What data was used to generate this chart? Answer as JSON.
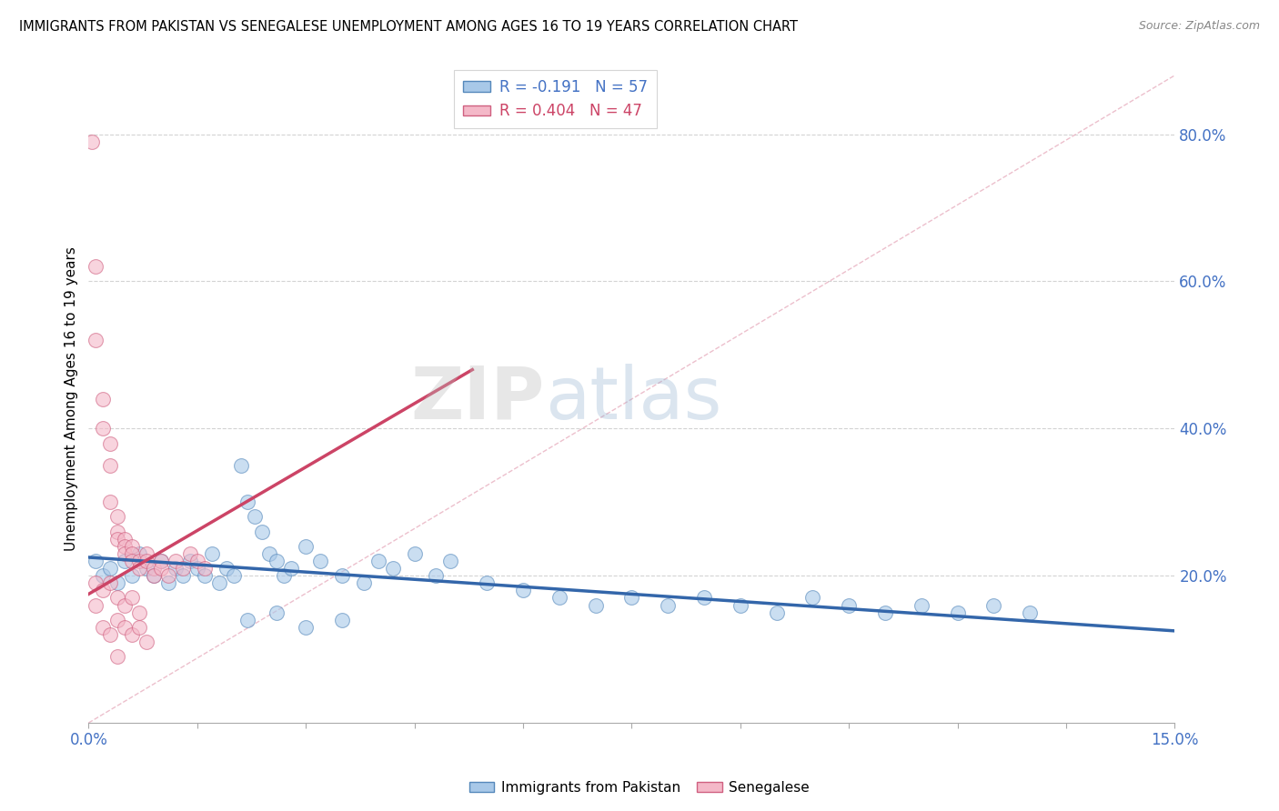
{
  "title": "IMMIGRANTS FROM PAKISTAN VS SENEGALESE UNEMPLOYMENT AMONG AGES 16 TO 19 YEARS CORRELATION CHART",
  "source": "Source: ZipAtlas.com",
  "ylabel": "Unemployment Among Ages 16 to 19 years",
  "xlim": [
    0.0,
    0.15
  ],
  "ylim": [
    0.0,
    0.88
  ],
  "xtick_positions": [
    0.0,
    0.015,
    0.03,
    0.045,
    0.06,
    0.075,
    0.09,
    0.105,
    0.12,
    0.135,
    0.15
  ],
  "xtick_labels": [
    "0.0%",
    "",
    "",
    "",
    "",
    "",
    "",
    "",
    "",
    "",
    "15.0%"
  ],
  "yticks_right": [
    0.2,
    0.4,
    0.6,
    0.8
  ],
  "ytick_right_labels": [
    "20.0%",
    "40.0%",
    "60.0%",
    "80.0%"
  ],
  "R_blue": -0.191,
  "N_blue": 57,
  "R_pink": 0.404,
  "N_pink": 47,
  "blue_color": "#a8c8e8",
  "pink_color": "#f4b8c8",
  "blue_edge_color": "#5588bb",
  "pink_edge_color": "#d06080",
  "blue_line_color": "#3366aa",
  "pink_line_color": "#cc4466",
  "diagonal_color": "#e8b0c0",
  "watermark": "ZIPatlas",
  "blue_trend_x": [
    0.0,
    0.15
  ],
  "blue_trend_y": [
    0.225,
    0.125
  ],
  "pink_trend_x": [
    0.0,
    0.053
  ],
  "pink_trend_y": [
    0.175,
    0.48
  ],
  "blue_scatter": [
    [
      0.001,
      0.22
    ],
    [
      0.002,
      0.2
    ],
    [
      0.003,
      0.21
    ],
    [
      0.004,
      0.19
    ],
    [
      0.005,
      0.22
    ],
    [
      0.006,
      0.2
    ],
    [
      0.007,
      0.23
    ],
    [
      0.008,
      0.21
    ],
    [
      0.009,
      0.2
    ],
    [
      0.01,
      0.22
    ],
    [
      0.011,
      0.19
    ],
    [
      0.012,
      0.21
    ],
    [
      0.013,
      0.2
    ],
    [
      0.014,
      0.22
    ],
    [
      0.015,
      0.21
    ],
    [
      0.016,
      0.2
    ],
    [
      0.017,
      0.23
    ],
    [
      0.018,
      0.19
    ],
    [
      0.019,
      0.21
    ],
    [
      0.02,
      0.2
    ],
    [
      0.021,
      0.35
    ],
    [
      0.022,
      0.3
    ],
    [
      0.023,
      0.28
    ],
    [
      0.024,
      0.26
    ],
    [
      0.025,
      0.23
    ],
    [
      0.026,
      0.22
    ],
    [
      0.027,
      0.2
    ],
    [
      0.028,
      0.21
    ],
    [
      0.03,
      0.24
    ],
    [
      0.032,
      0.22
    ],
    [
      0.035,
      0.2
    ],
    [
      0.038,
      0.19
    ],
    [
      0.04,
      0.22
    ],
    [
      0.042,
      0.21
    ],
    [
      0.045,
      0.23
    ],
    [
      0.048,
      0.2
    ],
    [
      0.05,
      0.22
    ],
    [
      0.055,
      0.19
    ],
    [
      0.06,
      0.18
    ],
    [
      0.065,
      0.17
    ],
    [
      0.07,
      0.16
    ],
    [
      0.075,
      0.17
    ],
    [
      0.08,
      0.16
    ],
    [
      0.085,
      0.17
    ],
    [
      0.09,
      0.16
    ],
    [
      0.095,
      0.15
    ],
    [
      0.1,
      0.17
    ],
    [
      0.105,
      0.16
    ],
    [
      0.11,
      0.15
    ],
    [
      0.115,
      0.16
    ],
    [
      0.12,
      0.15
    ],
    [
      0.125,
      0.16
    ],
    [
      0.13,
      0.15
    ],
    [
      0.022,
      0.14
    ],
    [
      0.026,
      0.15
    ],
    [
      0.03,
      0.13
    ],
    [
      0.035,
      0.14
    ]
  ],
  "pink_scatter": [
    [
      0.0005,
      0.79
    ],
    [
      0.001,
      0.62
    ],
    [
      0.001,
      0.52
    ],
    [
      0.002,
      0.44
    ],
    [
      0.002,
      0.4
    ],
    [
      0.003,
      0.38
    ],
    [
      0.003,
      0.35
    ],
    [
      0.003,
      0.3
    ],
    [
      0.004,
      0.28
    ],
    [
      0.004,
      0.26
    ],
    [
      0.004,
      0.25
    ],
    [
      0.005,
      0.25
    ],
    [
      0.005,
      0.24
    ],
    [
      0.005,
      0.23
    ],
    [
      0.006,
      0.24
    ],
    [
      0.006,
      0.23
    ],
    [
      0.006,
      0.22
    ],
    [
      0.007,
      0.22
    ],
    [
      0.007,
      0.21
    ],
    [
      0.008,
      0.23
    ],
    [
      0.008,
      0.22
    ],
    [
      0.009,
      0.21
    ],
    [
      0.009,
      0.2
    ],
    [
      0.01,
      0.22
    ],
    [
      0.01,
      0.21
    ],
    [
      0.011,
      0.2
    ],
    [
      0.012,
      0.22
    ],
    [
      0.013,
      0.21
    ],
    [
      0.014,
      0.23
    ],
    [
      0.015,
      0.22
    ],
    [
      0.016,
      0.21
    ],
    [
      0.001,
      0.19
    ],
    [
      0.002,
      0.18
    ],
    [
      0.003,
      0.19
    ],
    [
      0.004,
      0.17
    ],
    [
      0.005,
      0.16
    ],
    [
      0.006,
      0.17
    ],
    [
      0.007,
      0.15
    ],
    [
      0.002,
      0.13
    ],
    [
      0.003,
      0.12
    ],
    [
      0.004,
      0.14
    ],
    [
      0.005,
      0.13
    ],
    [
      0.001,
      0.16
    ],
    [
      0.006,
      0.12
    ],
    [
      0.007,
      0.13
    ],
    [
      0.008,
      0.11
    ],
    [
      0.004,
      0.09
    ]
  ]
}
